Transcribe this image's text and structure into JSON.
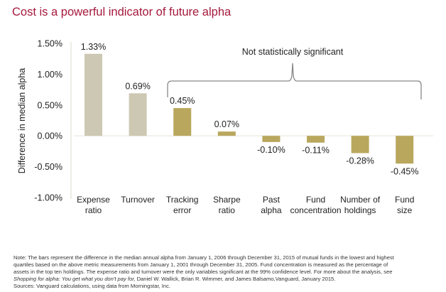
{
  "title": "Cost is a powerful indicator of future alpha",
  "colors": {
    "title": "#a6193c",
    "significant_bar": "#cdc8b3",
    "insignificant_bar": "#b9a75e",
    "axis": "#e8e6dc",
    "bracket": "#888888"
  },
  "chart_data": {
    "type": "bar",
    "title": "Cost is a powerful indicator of future alpha",
    "xlabel": "",
    "ylabel": "Difference in median alpha",
    "ylim": [
      -1.0,
      1.5
    ],
    "yticks": [
      1.5,
      1.0,
      0.5,
      0.0,
      -0.5,
      -1.0
    ],
    "ytick_labels": [
      "1.50%",
      "1.00%",
      "0.50%",
      "0.00%",
      "-0.50%",
      "-1.00%"
    ],
    "categories": [
      [
        "Expense",
        "ratio"
      ],
      [
        "Turnover"
      ],
      [
        "Tracking",
        "error"
      ],
      [
        "Sharpe",
        "ratio"
      ],
      [
        "Past",
        "alpha"
      ],
      [
        "Fund",
        "concentration"
      ],
      [
        "Number of",
        "holdings"
      ],
      [
        "Fund",
        "size"
      ]
    ],
    "values": [
      1.33,
      0.69,
      0.45,
      0.07,
      -0.1,
      -0.11,
      -0.28,
      -0.45
    ],
    "value_labels": [
      "1.33%",
      "0.69%",
      "0.45%",
      "0.07%",
      "-0.10%",
      "-0.11%",
      "-0.28%",
      "-0.45%"
    ],
    "significant": [
      true,
      true,
      false,
      false,
      false,
      false,
      false,
      false
    ],
    "annotation": "Not statistically significant",
    "grid": false,
    "legend": "none"
  },
  "notes": {
    "line1": "Note: The bars represent the difference in the median annual alpha from January 1, 2006 through December 31, 2015 of mutual funds in the lowest and highest",
    "line2": "quartiles based on  the above metric measurements from January 1, 2001 through December 31, 2005. Fund concentration is measured as the percentage of",
    "line3": "assets in the top ten holdings. The expense ratio and turnover were the only variables significant at the 99% confidence level. For more about the analysis, see",
    "line4_italic": "Shopping for alpha: You get what you don't pay for,",
    "line4_rest": " Daniel W. Wallick, Brian R. Wimmer, and James Balsamo,Vanguard, January 2015.",
    "line5": "Sources: Vanguard calculations, using data from Morningstar, Inc."
  }
}
